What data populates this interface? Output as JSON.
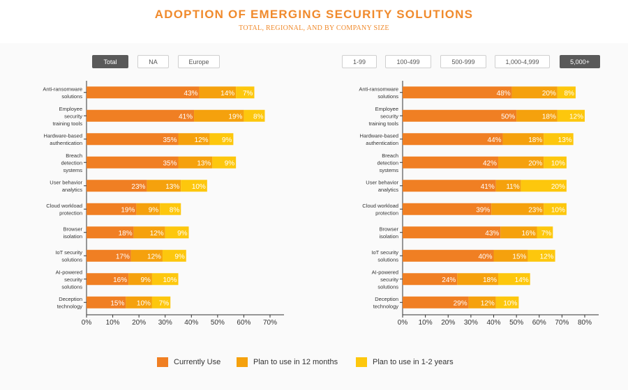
{
  "header": {
    "title": "ADOPTION OF EMERGING SECURITY SOLUTIONS",
    "subtitle": "TOTAL, REGIONAL, AND BY COMPANY SIZE"
  },
  "filters": {
    "region": [
      {
        "label": "Total",
        "active": true
      },
      {
        "label": "NA",
        "active": false
      },
      {
        "label": "Europe",
        "active": false
      }
    ],
    "size": [
      {
        "label": "1-99",
        "active": false
      },
      {
        "label": "100-499",
        "active": false
      },
      {
        "label": "500-999",
        "active": false
      },
      {
        "label": "1,000-4,999",
        "active": false
      },
      {
        "label": "5,000+",
        "active": true
      }
    ]
  },
  "colors": {
    "current": "#f07f23",
    "plan12": "#f5a10d",
    "plan12y": "#fdc70d"
  },
  "legend": [
    {
      "label": "Currently Use",
      "key": "current"
    },
    {
      "label": "Plan to use in 12 months",
      "key": "plan12"
    },
    {
      "label": "Plan to use in 1-2 years",
      "key": "plan12y"
    }
  ],
  "chart_data": [
    {
      "type": "bar",
      "orientation": "horizontal",
      "stacked": true,
      "filter": "Total",
      "categories": [
        [
          "Anti-ransomware",
          "solutions"
        ],
        [
          "Employee",
          "security",
          "training tools"
        ],
        [
          "Hardware-based",
          "authentication"
        ],
        [
          "Breach",
          "detection",
          "systems"
        ],
        [
          "User behavior",
          "analytics"
        ],
        [
          "Cloud workload",
          "protection"
        ],
        [
          "Browser",
          "isolation"
        ],
        [
          "IoT security",
          "solutions"
        ],
        [
          "AI-powered",
          "security",
          "solutions"
        ],
        [
          "Deception",
          "technology"
        ]
      ],
      "series": [
        {
          "name": "Currently Use",
          "key": "current",
          "values": [
            43,
            41,
            35,
            35,
            23,
            19,
            18,
            17,
            16,
            15
          ]
        },
        {
          "name": "Plan to use in 12 months",
          "key": "plan12",
          "values": [
            14,
            19,
            12,
            13,
            13,
            9,
            12,
            12,
            9,
            10
          ]
        },
        {
          "name": "Plan to use in 1-2 years",
          "key": "plan12y",
          "values": [
            7,
            8,
            9,
            9,
            10,
            8,
            9,
            9,
            10,
            7
          ]
        }
      ],
      "xlim": [
        0,
        70
      ],
      "xticks": [
        "0%",
        "10%",
        "20%",
        "30%",
        "40%",
        "50%",
        "60%",
        "70%"
      ]
    },
    {
      "type": "bar",
      "orientation": "horizontal",
      "stacked": true,
      "filter": "5,000+",
      "categories": [
        [
          "Anti-ransomware",
          "solutions"
        ],
        [
          "Employee",
          "security",
          "training tools"
        ],
        [
          "Hardware-based",
          "authentication"
        ],
        [
          "Breach",
          "detection",
          "systems"
        ],
        [
          "User behavior",
          "analytics"
        ],
        [
          "Cloud workload",
          "protection"
        ],
        [
          "Browser",
          "isolation"
        ],
        [
          "IoT security",
          "solutions"
        ],
        [
          "AI-powered",
          "security",
          "solutions"
        ],
        [
          "Deception",
          "technology"
        ]
      ],
      "series": [
        {
          "name": "Currently Use",
          "key": "current",
          "values": [
            48,
            50,
            44,
            42,
            41,
            39,
            43,
            40,
            24,
            29
          ]
        },
        {
          "name": "Plan to use in 12 months",
          "key": "plan12",
          "values": [
            20,
            18,
            18,
            20,
            11,
            23,
            16,
            15,
            18,
            12
          ]
        },
        {
          "name": "Plan to use in 1-2 years",
          "key": "plan12y",
          "values": [
            8,
            12,
            13,
            10,
            20,
            10,
            7,
            12,
            14,
            10
          ]
        }
      ],
      "xlim": [
        0,
        80
      ],
      "xticks": [
        "0%",
        "10%",
        "20%",
        "30%",
        "40%",
        "50%",
        "60%",
        "70%",
        "80%"
      ]
    }
  ]
}
